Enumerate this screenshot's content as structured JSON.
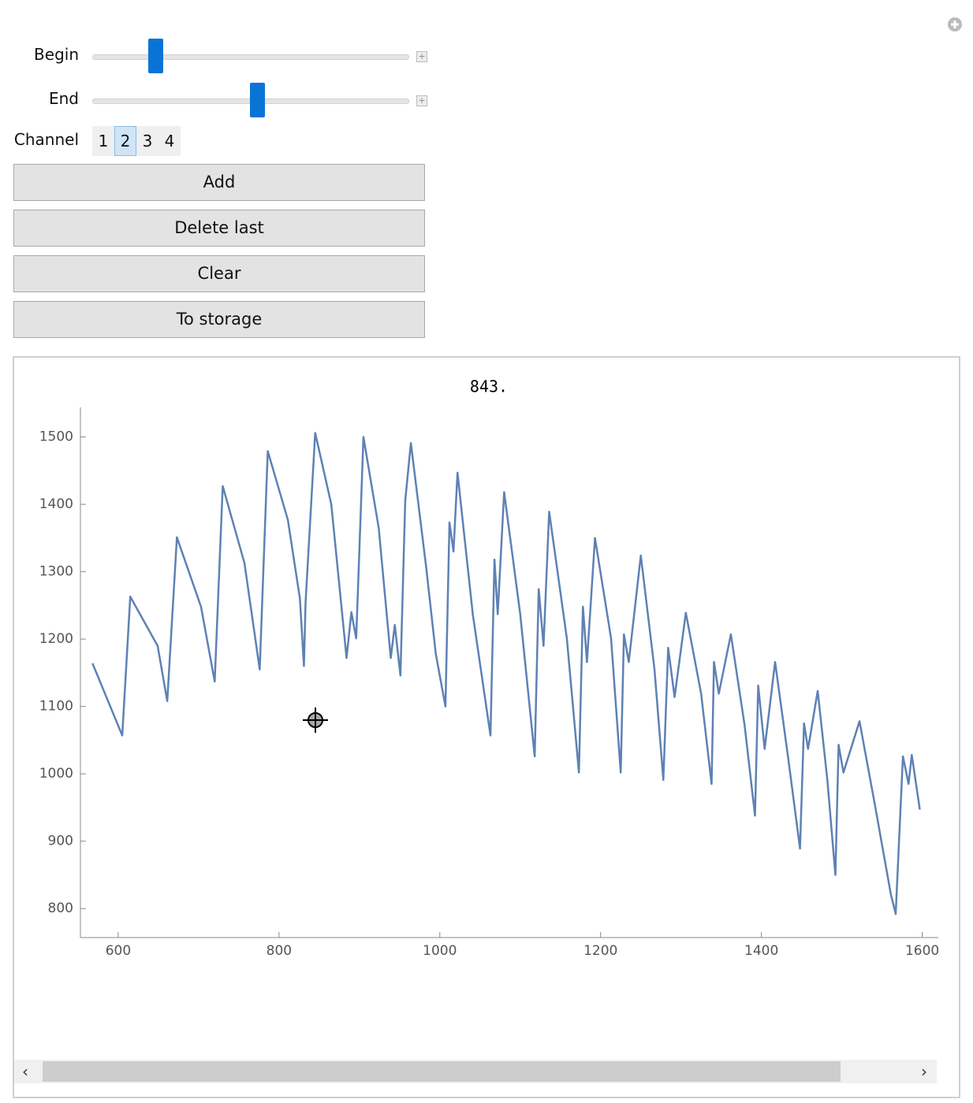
{
  "controls": {
    "begin": {
      "label": "Begin"
    },
    "end": {
      "label": "End"
    },
    "channel": {
      "label": "Channel",
      "options": [
        "1",
        "2",
        "3",
        "4"
      ],
      "selected": "2"
    }
  },
  "buttons": [
    "Add",
    "Delete last",
    "Clear",
    "To storage"
  ],
  "chart_data": {
    "type": "line",
    "title": "843.",
    "x": [
      568,
      605,
      615,
      649,
      661,
      673,
      703,
      720,
      730,
      757,
      776,
      786,
      811,
      826,
      831,
      833,
      845,
      865,
      884,
      890,
      896,
      905,
      924,
      939,
      944,
      951,
      957,
      964,
      983,
      995,
      1007,
      1012,
      1017,
      1022,
      1041,
      1063,
      1068,
      1072,
      1080,
      1100,
      1118,
      1123,
      1129,
      1136,
      1158,
      1173,
      1178,
      1183,
      1193,
      1213,
      1225,
      1229,
      1235,
      1250,
      1267,
      1278,
      1284,
      1292,
      1306,
      1325,
      1338,
      1341,
      1347,
      1362,
      1379,
      1392,
      1396,
      1404,
      1417,
      1433,
      1448,
      1453,
      1458,
      1470,
      1482,
      1492,
      1496,
      1502,
      1522,
      1541,
      1561,
      1567,
      1576,
      1583,
      1587,
      1597
    ],
    "series": [
      {
        "name": "Channel 2",
        "color": "#5e81b5",
        "values": [
          1164,
          1057,
          1263,
          1190,
          1108,
          1351,
          1248,
          1137,
          1427,
          1313,
          1155,
          1479,
          1377,
          1260,
          1160,
          1254,
          1506,
          1400,
          1172,
          1240,
          1201,
          1500,
          1365,
          1172,
          1221,
          1146,
          1406,
          1491,
          1307,
          1178,
          1100,
          1373,
          1330,
          1447,
          1237,
          1057,
          1318,
          1237,
          1418,
          1237,
          1026,
          1274,
          1190,
          1389,
          1201,
          1002,
          1248,
          1166,
          1350,
          1201,
          1002,
          1207,
          1166,
          1324,
          1155,
          991,
          1187,
          1114,
          1239,
          1119,
          985,
          1166,
          1119,
          1207,
          1073,
          938,
          1131,
          1037,
          1166,
          1026,
          889,
          1075,
          1037,
          1123,
          991,
          850,
          1043,
          1002,
          1078,
          955,
          821,
          792,
          1026,
          985,
          1028,
          947
        ]
      }
    ],
    "xlim": [
      553,
      1620
    ],
    "ylim": [
      757,
      1544
    ],
    "xticks": [
      600,
      800,
      1000,
      1200,
      1400,
      1600
    ],
    "yticks": [
      800,
      900,
      1000,
      1100,
      1200,
      1300,
      1400,
      1500
    ]
  }
}
